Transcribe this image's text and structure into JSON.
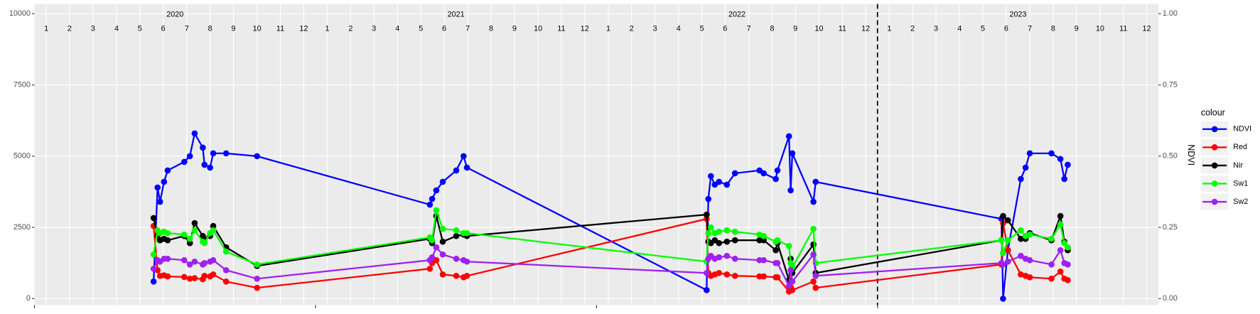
{
  "chart_data": {
    "type": "line",
    "x": [
      2020.424,
      2020.438,
      2020.447,
      2020.461,
      2020.474,
      2020.533,
      2020.553,
      2020.57,
      2020.599,
      2020.605,
      2020.625,
      2020.636,
      2020.682,
      2020.792,
      2021.407,
      2021.415,
      2021.43,
      2021.453,
      2021.501,
      2021.527,
      2021.539,
      2022.392,
      2022.398,
      2022.407,
      2022.421,
      2022.436,
      2022.464,
      2022.493,
      2022.58,
      2022.595,
      2022.638,
      2022.644,
      2022.685,
      2022.691,
      2022.697,
      2022.772,
      2022.78,
      2023.441,
      2023.447,
      2023.464,
      2023.51,
      2023.527,
      2023.542,
      2023.619,
      2023.651,
      2023.665,
      2023.677
    ],
    "series": [
      {
        "name": "NDVI",
        "color": "#0000ff",
        "axis": "y2",
        "values": [
          0.06,
          0.39,
          0.34,
          0.41,
          0.45,
          0.48,
          0.5,
          0.58,
          0.53,
          0.47,
          0.46,
          0.51,
          0.51,
          0.5,
          0.33,
          0.35,
          0.38,
          0.41,
          0.45,
          0.5,
          0.46,
          0.03,
          0.35,
          0.43,
          0.4,
          0.41,
          0.4,
          0.44,
          0.45,
          0.44,
          0.42,
          0.45,
          0.57,
          0.38,
          0.51,
          0.34,
          0.41,
          0.28,
          0,
          0.17,
          0.42,
          0.46,
          0.51,
          0.51,
          0.49,
          0.42,
          0.47
        ]
      },
      {
        "name": "Red",
        "color": "#ff0000",
        "values": [
          2550,
          1000,
          800,
          820,
          780,
          760,
          700,
          720,
          680,
          800,
          780,
          850,
          600,
          380,
          1050,
          1250,
          1350,
          850,
          800,
          750,
          800,
          2800,
          900,
          800,
          850,
          900,
          850,
          800,
          780,
          780,
          750,
          750,
          250,
          400,
          300,
          600,
          380,
          1200,
          2650,
          1700,
          850,
          800,
          750,
          700,
          950,
          700,
          650
        ]
      },
      {
        "name": "Nir",
        "color": "#000000",
        "values": [
          2830,
          2200,
          2050,
          2100,
          2050,
          2200,
          1950,
          2650,
          2200,
          2100,
          2200,
          2550,
          1800,
          1150,
          2100,
          1950,
          2900,
          2000,
          2200,
          2250,
          2200,
          2950,
          2000,
          1950,
          2050,
          1950,
          2000,
          2050,
          2050,
          2050,
          1700,
          1950,
          650,
          1400,
          900,
          1900,
          900,
          2050,
          2900,
          2750,
          2100,
          2100,
          2300,
          2050,
          2900,
          2000,
          1700
        ]
      },
      {
        "name": "Sw1",
        "color": "#00ff00",
        "values": [
          1550,
          2400,
          2300,
          2350,
          2300,
          2250,
          2100,
          2400,
          2000,
          1950,
          2300,
          2400,
          1650,
          1200,
          2150,
          2050,
          3100,
          2450,
          2400,
          2300,
          2300,
          1300,
          2300,
          2500,
          2300,
          2350,
          2400,
          2350,
          2250,
          2200,
          2000,
          2050,
          1850,
          1250,
          1100,
          2450,
          1250,
          2050,
          1600,
          2050,
          2400,
          2200,
          2250,
          2100,
          2600,
          1950,
          1800
        ]
      },
      {
        "name": "Sw2",
        "color": "#a020f0",
        "values": [
          1050,
          1350,
          1300,
          1400,
          1400,
          1350,
          1200,
          1300,
          1200,
          1250,
          1300,
          1350,
          1000,
          700,
          1350,
          1450,
          1800,
          1550,
          1400,
          1350,
          1300,
          900,
          1400,
          1500,
          1400,
          1450,
          1500,
          1400,
          1350,
          1350,
          1250,
          1250,
          450,
          1000,
          600,
          1550,
          800,
          1250,
          1200,
          1300,
          1500,
          1400,
          1350,
          1200,
          1700,
          1250,
          1200
        ]
      }
    ],
    "xlim": [
      2020,
      2024
    ],
    "xticks": [
      2020,
      2021,
      2022,
      2023
    ],
    "year_ticks": [
      {
        "value": 2020.5,
        "label": "2020"
      },
      {
        "value": 2021.5,
        "label": "2021"
      },
      {
        "value": 2022.5,
        "label": "2022"
      },
      {
        "value": 2023.5,
        "label": "2023"
      }
    ],
    "month_ticks": [
      {
        "value": 2020.042,
        "label": "1"
      },
      {
        "value": 2020.125,
        "label": "2"
      },
      {
        "value": 2020.208,
        "label": "3"
      },
      {
        "value": 2020.292,
        "label": "4"
      },
      {
        "value": 2020.375,
        "label": "5"
      },
      {
        "value": 2020.458,
        "label": "6"
      },
      {
        "value": 2020.542,
        "label": "7"
      },
      {
        "value": 2020.625,
        "label": "8"
      },
      {
        "value": 2020.708,
        "label": "9"
      },
      {
        "value": 2020.792,
        "label": "10"
      },
      {
        "value": 2020.875,
        "label": "11"
      },
      {
        "value": 2020.958,
        "label": "12"
      },
      {
        "value": 2021.042,
        "label": "1"
      },
      {
        "value": 2021.125,
        "label": "2"
      },
      {
        "value": 2021.208,
        "label": "3"
      },
      {
        "value": 2021.292,
        "label": "4"
      },
      {
        "value": 2021.375,
        "label": "5"
      },
      {
        "value": 2021.458,
        "label": "6"
      },
      {
        "value": 2021.542,
        "label": "7"
      },
      {
        "value": 2021.625,
        "label": "8"
      },
      {
        "value": 2021.708,
        "label": "9"
      },
      {
        "value": 2021.792,
        "label": "10"
      },
      {
        "value": 2021.875,
        "label": "11"
      },
      {
        "value": 2021.958,
        "label": "12"
      },
      {
        "value": 2022.042,
        "label": "1"
      },
      {
        "value": 2022.125,
        "label": "2"
      },
      {
        "value": 2022.208,
        "label": "3"
      },
      {
        "value": 2022.292,
        "label": "4"
      },
      {
        "value": 2022.375,
        "label": "5"
      },
      {
        "value": 2022.458,
        "label": "6"
      },
      {
        "value": 2022.542,
        "label": "7"
      },
      {
        "value": 2022.625,
        "label": "8"
      },
      {
        "value": 2022.708,
        "label": "9"
      },
      {
        "value": 2022.792,
        "label": "10"
      },
      {
        "value": 2022.875,
        "label": "11"
      },
      {
        "value": 2022.958,
        "label": "12"
      },
      {
        "value": 2023.042,
        "label": "1"
      },
      {
        "value": 2023.125,
        "label": "2"
      },
      {
        "value": 2023.208,
        "label": "3"
      },
      {
        "value": 2023.292,
        "label": "4"
      },
      {
        "value": 2023.375,
        "label": "5"
      },
      {
        "value": 2023.458,
        "label": "6"
      },
      {
        "value": 2023.542,
        "label": "7"
      },
      {
        "value": 2023.625,
        "label": "8"
      },
      {
        "value": 2023.708,
        "label": "9"
      },
      {
        "value": 2023.792,
        "label": "10"
      },
      {
        "value": 2023.875,
        "label": "11"
      },
      {
        "value": 2023.958,
        "label": "12"
      }
    ],
    "vline": 2023,
    "ylim": [
      -227,
      10340
    ],
    "yticks": [
      0,
      2500,
      5000,
      7500,
      10000
    ],
    "y2lim": [
      -0.0227,
      1.034
    ],
    "y2ticks": [
      {
        "value": 0,
        "label": "0.00"
      },
      {
        "value": 0.25,
        "label": "0.25"
      },
      {
        "value": 0.5,
        "label": "0.50"
      },
      {
        "value": 0.75,
        "label": "0.75"
      },
      {
        "value": 1,
        "label": "1.00"
      }
    ],
    "y2label": "NDVI",
    "legend_title": "colour",
    "grid": true
  }
}
